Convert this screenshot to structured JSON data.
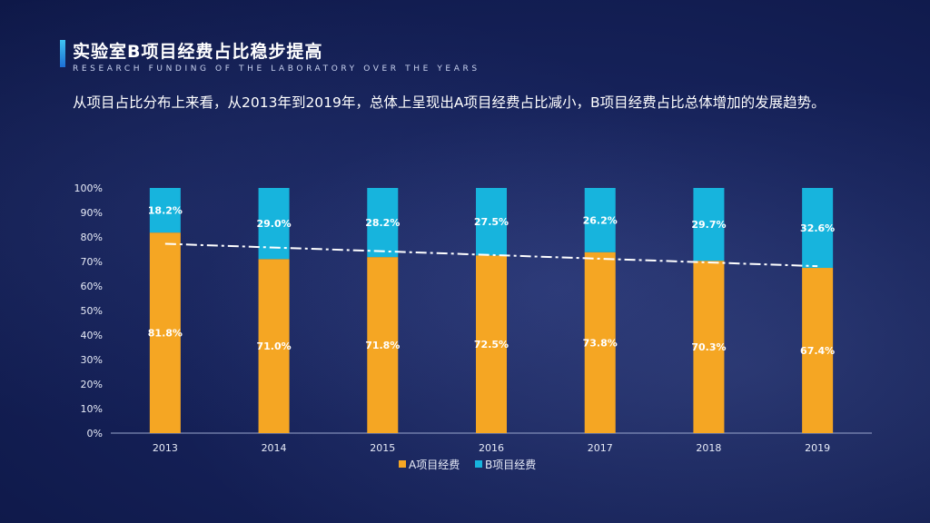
{
  "header": {
    "title": "实验室B项目经费占比稳步提高",
    "subtitle": "RESEARCH FUNDING OF THE LABORATORY OVER THE YEARS",
    "description": "从项目占比分布上来看，从2013年到2019年，总体上呈现出A项目经费占比减小，B项目经费占比总体增加的发展趋势。"
  },
  "colors": {
    "series_a": "#f5a623",
    "series_b": "#17b4dd",
    "trendline": "#ffffff"
  },
  "chart_data": {
    "type": "bar",
    "stacked": true,
    "percent_stacked": true,
    "categories": [
      "2013",
      "2014",
      "2015",
      "2016",
      "2017",
      "2018",
      "2019"
    ],
    "series": [
      {
        "name": "A项目经费",
        "values": [
          81.8,
          71.0,
          71.8,
          72.5,
          73.8,
          70.3,
          67.4
        ],
        "labels": [
          "81.8%",
          "71.0%",
          "71.8%",
          "72.5%",
          "73.8%",
          "70.3%",
          "67.4%"
        ]
      },
      {
        "name": "B项目经费",
        "values": [
          18.2,
          29.0,
          28.2,
          27.5,
          26.2,
          29.7,
          32.6
        ],
        "labels": [
          "18.2%",
          "29.0%",
          "28.2%",
          "27.5%",
          "26.2%",
          "29.7%",
          "32.6%"
        ]
      }
    ],
    "trendline": {
      "style": "dash-dot",
      "series": "A项目经费",
      "type": "linear"
    },
    "ylim": [
      0,
      100
    ],
    "yticks": [
      "0%",
      "10%",
      "20%",
      "30%",
      "40%",
      "50%",
      "60%",
      "70%",
      "80%",
      "90%",
      "100%"
    ],
    "xlabel": "",
    "ylabel": "",
    "legend": "bottom",
    "grid": false
  }
}
